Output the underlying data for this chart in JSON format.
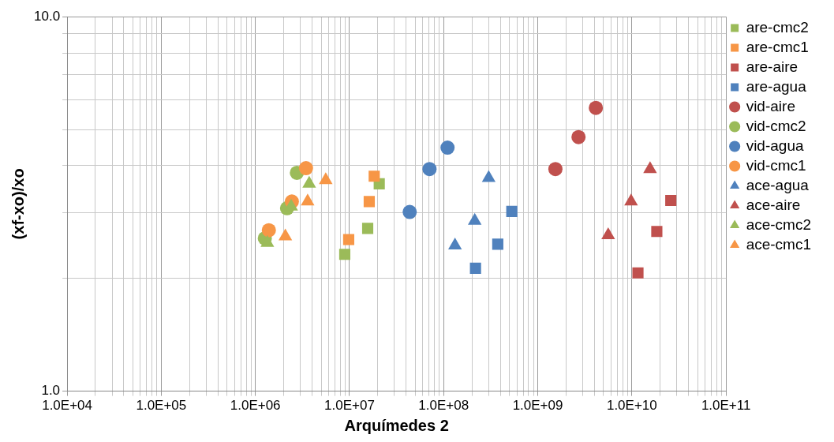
{
  "chart_data": {
    "type": "scatter",
    "xlabel": "Arquímedes 2",
    "ylabel": "(xf-xo)/xo",
    "log": "xy",
    "grid": true,
    "legend": "right",
    "xlim": [
      10000,
      100000000000
    ],
    "ylim": [
      1,
      10
    ],
    "xticks": [
      {
        "value": 10000,
        "label": "1.0E+04"
      },
      {
        "value": 100000,
        "label": "1.0E+05"
      },
      {
        "value": 1000000,
        "label": "1.0E+06"
      },
      {
        "value": 10000000,
        "label": "1.0E+07"
      },
      {
        "value": 100000000,
        "label": "1.0E+08"
      },
      {
        "value": 1000000000,
        "label": "1.0E+09"
      },
      {
        "value": 10000000000,
        "label": "1.0E+10"
      },
      {
        "value": 100000000000,
        "label": "1.0E+11"
      }
    ],
    "yticks": [
      {
        "value": 1,
        "label": "1.0"
      },
      {
        "value": 10,
        "label": "10.0"
      }
    ],
    "series": [
      {
        "name": "are-cmc2",
        "color": "#9bbb59",
        "marker": "square",
        "x": [
          8900000,
          15600000,
          20700000
        ],
        "values": [
          2.32,
          2.72,
          3.58
        ]
      },
      {
        "name": "are-cmc1",
        "color": "#f79646",
        "marker": "square",
        "x": [
          9800000,
          16200000,
          18300000
        ],
        "values": [
          2.54,
          3.21,
          3.75
        ]
      },
      {
        "name": "are-aire",
        "color": "#c0504d",
        "marker": "square",
        "x": [
          11600000000,
          18400000000,
          25900000000
        ],
        "values": [
          2.07,
          2.67,
          3.23
        ]
      },
      {
        "name": "are-agua",
        "color": "#4f81bd",
        "marker": "square",
        "x": [
          218000000,
          376000000,
          530000000
        ],
        "values": [
          2.13,
          2.47,
          3.02
        ]
      },
      {
        "name": "vid-aire",
        "color": "#c0504d",
        "marker": "circle",
        "x": [
          1540000000,
          2710000000,
          4140000000
        ],
        "values": [
          3.92,
          4.77,
          5.71
        ]
      },
      {
        "name": "vid-cmc2",
        "color": "#9bbb59",
        "marker": "circle",
        "x": [
          1260000,
          2170000,
          2760000
        ],
        "values": [
          2.56,
          3.08,
          3.83
        ]
      },
      {
        "name": "vid-agua",
        "color": "#4f81bd",
        "marker": "circle",
        "x": [
          43600000,
          70800000,
          110000000
        ],
        "values": [
          3.01,
          3.92,
          4.47
        ]
      },
      {
        "name": "vid-cmc1",
        "color": "#f79646",
        "marker": "circle",
        "x": [
          1390000,
          2440000,
          3450000
        ],
        "values": [
          2.69,
          3.21,
          3.94
        ]
      },
      {
        "name": "ace-agua",
        "color": "#4f81bd",
        "marker": "triangle",
        "x": [
          132000000,
          214000000,
          301000000
        ],
        "values": [
          2.45,
          2.85,
          3.71
        ]
      },
      {
        "name": "ace-aire",
        "color": "#c0504d",
        "marker": "triangle",
        "x": [
          5600000000,
          9800000000,
          15600000000
        ],
        "values": [
          2.61,
          3.21,
          3.92
        ]
      },
      {
        "name": "ace-cmc2",
        "color": "#9bbb59",
        "marker": "triangle",
        "x": [
          1340000,
          2400000,
          3730000
        ],
        "values": [
          2.49,
          3.11,
          3.58
        ]
      },
      {
        "name": "ace-cmc1",
        "color": "#f79646",
        "marker": "triangle",
        "x": [
          2080000,
          3590000,
          5590000
        ],
        "values": [
          2.59,
          3.21,
          3.66
        ]
      }
    ]
  }
}
